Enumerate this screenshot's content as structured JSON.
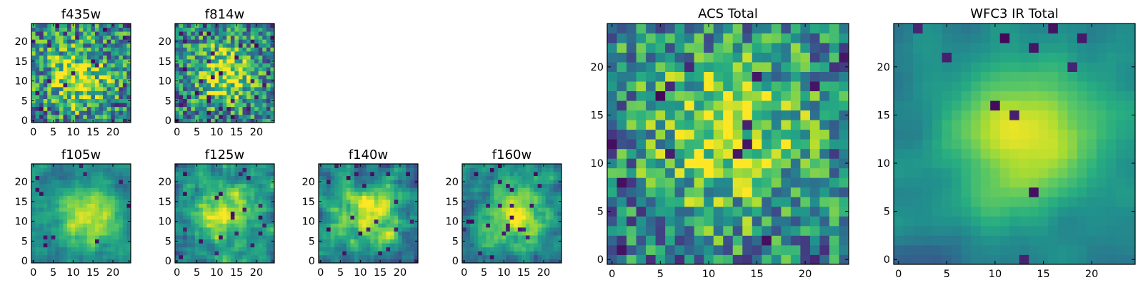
{
  "chart_data": [
    {
      "type": "heatmap",
      "title": "f435w",
      "grid_size": 25,
      "colormap": "viridis",
      "xticks": [
        0,
        5,
        10,
        15,
        20
      ],
      "yticks": [
        0,
        5,
        10,
        15,
        20
      ],
      "seed": 11,
      "peak": [
        11,
        11
      ],
      "smooth": 0,
      "noise": 0.55,
      "darkness": 0.03
    },
    {
      "type": "heatmap",
      "title": "f814w",
      "grid_size": 25,
      "colormap": "viridis",
      "xticks": [
        0,
        5,
        10,
        15,
        20
      ],
      "yticks": [
        0,
        5,
        10,
        15,
        20
      ],
      "seed": 23,
      "peak": [
        12,
        12
      ],
      "smooth": 0,
      "noise": 0.5,
      "darkness": 0.05
    },
    {
      "type": "heatmap",
      "title": "f105w",
      "grid_size": 25,
      "colormap": "viridis",
      "xticks": [
        0,
        5,
        10,
        15,
        20
      ],
      "yticks": [
        0,
        5,
        10,
        15,
        20
      ],
      "seed": 37,
      "peak": [
        14,
        11
      ],
      "smooth": 1,
      "noise": 0.45,
      "darkness": 0.02
    },
    {
      "type": "heatmap",
      "title": "f125w",
      "grid_size": 25,
      "colormap": "viridis",
      "xticks": [
        0,
        5,
        10,
        15,
        20
      ],
      "yticks": [
        0,
        5,
        10,
        15,
        20
      ],
      "seed": 41,
      "peak": [
        12,
        12
      ],
      "smooth": 1,
      "noise": 0.7,
      "darkness": 0.04
    },
    {
      "type": "heatmap",
      "title": "f140w",
      "grid_size": 25,
      "colormap": "viridis",
      "xticks": [
        0,
        5,
        10,
        15,
        20
      ],
      "yticks": [
        0,
        5,
        10,
        15,
        20
      ],
      "seed": 53,
      "peak": [
        13,
        12
      ],
      "smooth": 1,
      "noise": 0.7,
      "darkness": 0.04
    },
    {
      "type": "heatmap",
      "title": "f160w",
      "grid_size": 25,
      "colormap": "viridis",
      "xticks": [
        0,
        5,
        10,
        15,
        20
      ],
      "yticks": [
        0,
        5,
        10,
        15,
        20
      ],
      "seed": 67,
      "peak": [
        13,
        12
      ],
      "smooth": 1,
      "noise": 0.6,
      "darkness": 0.03
    },
    {
      "type": "heatmap",
      "title": "ACS Total",
      "grid_size": 25,
      "colormap": "viridis",
      "xticks": [
        0,
        5,
        10,
        15,
        20
      ],
      "yticks": [
        0,
        5,
        10,
        15,
        20
      ],
      "seed": 79,
      "peak": [
        12,
        13
      ],
      "smooth": 0,
      "noise": 0.5,
      "darkness": 0.03
    },
    {
      "type": "heatmap",
      "title": "WFC3 IR Total",
      "grid_size": 25,
      "colormap": "viridis",
      "xticks": [
        0,
        5,
        10,
        15,
        20
      ],
      "yticks": [
        0,
        5,
        10,
        15,
        20
      ],
      "seed": 97,
      "peak": [
        13,
        13
      ],
      "smooth": 2,
      "noise": 0.35,
      "darkness": 0.02
    }
  ]
}
